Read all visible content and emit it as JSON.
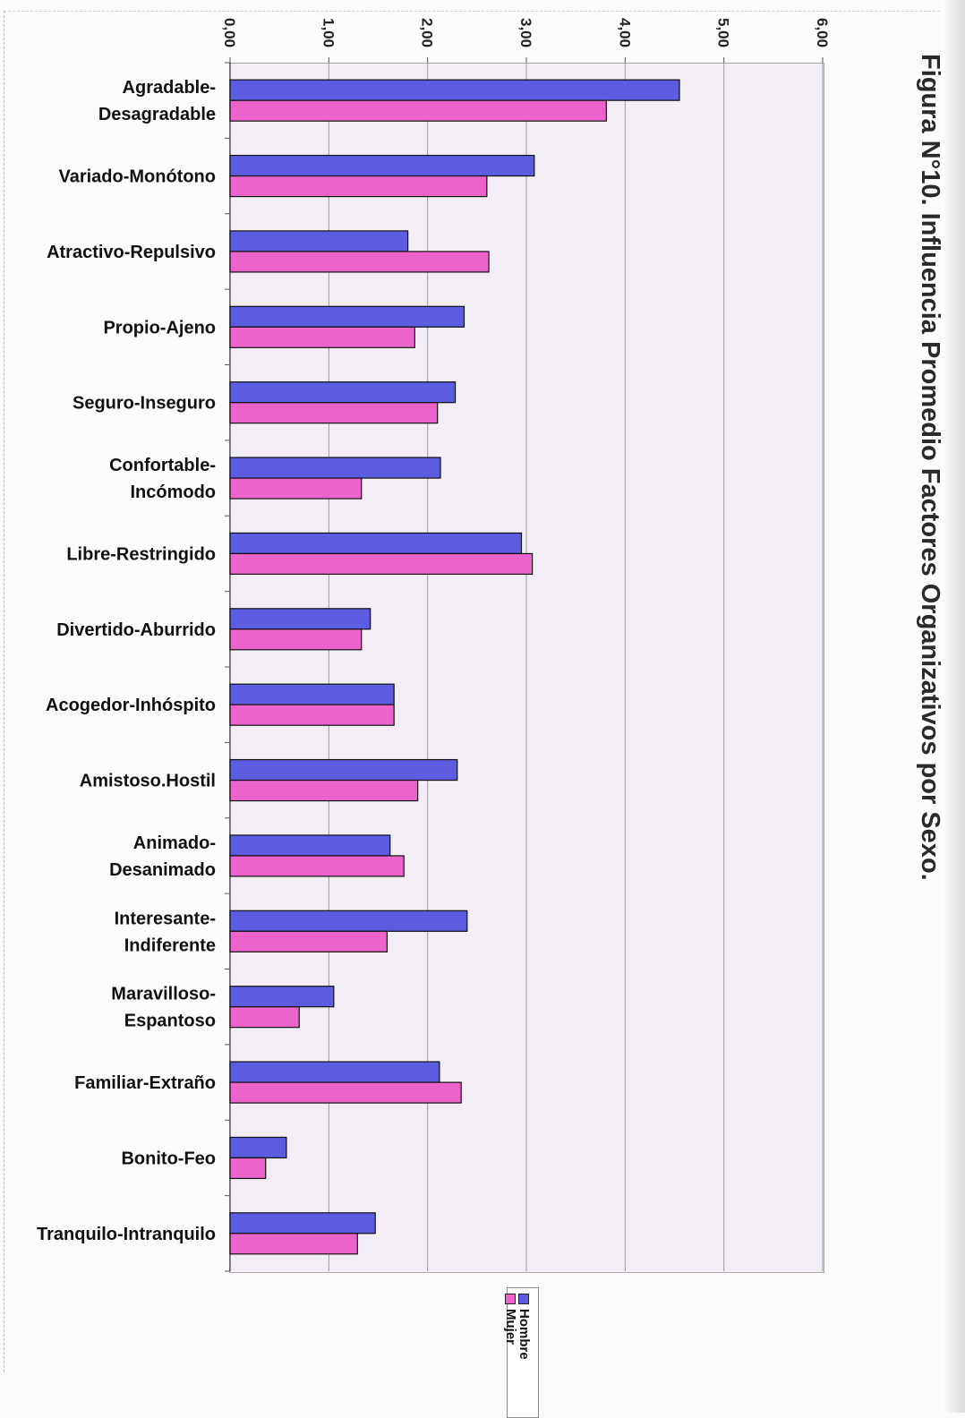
{
  "title": "Figura N°10.  Influencia Promedio Factores Organizativos por Sexo.",
  "chart_data": {
    "type": "bar",
    "orientation": "rotated",
    "categories": [
      [
        "Agradable-",
        "Desagradable"
      ],
      [
        "Variado-Monótono"
      ],
      [
        "Atractivo-Repulsivo"
      ],
      [
        "Propio-Ajeno"
      ],
      [
        "Seguro-Inseguro"
      ],
      [
        "Confortable-",
        "Incómodo"
      ],
      [
        "Libre-Restringido"
      ],
      [
        "Divertido-Aburrido"
      ],
      [
        "Acogedor-Inhóspito"
      ],
      [
        "Amistoso.Hostil"
      ],
      [
        "Animado-",
        "Desanimado"
      ],
      [
        "Interesante-",
        "Indiferente"
      ],
      [
        "Maravilloso-",
        "Espantoso"
      ],
      [
        "Familiar-Extraño"
      ],
      [
        "Bonito-Feo"
      ],
      [
        "Tranquilo-Intranquilo"
      ]
    ],
    "series": [
      {
        "name": "Hombre",
        "color": "#5c5ce0",
        "values": [
          4.55,
          3.08,
          1.8,
          2.37,
          2.28,
          2.13,
          2.95,
          1.42,
          1.66,
          2.3,
          1.62,
          2.4,
          1.05,
          2.12,
          0.57,
          1.47
        ]
      },
      {
        "name": "Mujer",
        "color": "#ec63cc",
        "values": [
          3.81,
          2.6,
          2.62,
          1.87,
          2.1,
          1.33,
          3.06,
          1.33,
          1.66,
          1.9,
          1.76,
          1.59,
          0.7,
          2.34,
          0.36,
          1.29
        ]
      }
    ],
    "value_axis": {
      "min": 0,
      "max": 6,
      "ticks": [
        "0,00",
        "1,00",
        "2,00",
        "3,00",
        "4,00",
        "5,00",
        "6,00"
      ]
    },
    "grid": true,
    "legend_position": "bottom"
  }
}
